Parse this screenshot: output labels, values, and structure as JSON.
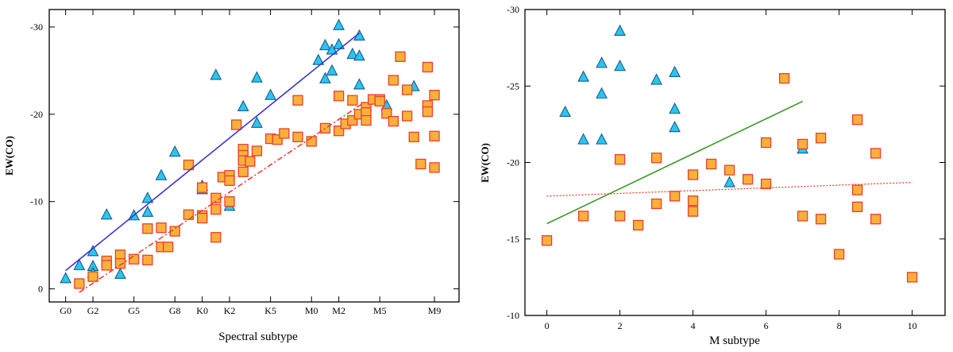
{
  "colors": {
    "square_fill": "#FBB03B",
    "square_stroke": "#E8412C",
    "triangle_fill": "#29C6F0",
    "triangle_stroke": "#1A5E8A",
    "fit_blue": "#3B33D6",
    "fit_red": "#E8412C",
    "fit_green": "#3A9B2A"
  },
  "chart_data": [
    {
      "type": "scatter",
      "xlabel": "Spectral subtype",
      "ylabel": "EW(CO)",
      "xlim": [
        -1.2,
        28.8
      ],
      "ylim": [
        1.5,
        -32
      ],
      "y_inverted": true,
      "xticks": [
        {
          "x": 0,
          "label": "G0"
        },
        {
          "x": 2,
          "label": "G2"
        },
        {
          "x": 5,
          "label": "G5"
        },
        {
          "x": 8,
          "label": "G8"
        },
        {
          "x": 10,
          "label": "K0"
        },
        {
          "x": 12,
          "label": "K2"
        },
        {
          "x": 15,
          "label": "K5"
        },
        {
          "x": 18,
          "label": "M0"
        },
        {
          "x": 20,
          "label": "M2"
        },
        {
          "x": 23,
          "label": "M5"
        },
        {
          "x": 27,
          "label": "M9"
        }
      ],
      "yticks": [
        0,
        -10,
        -20,
        -30
      ],
      "series": [
        {
          "marker": "triangle",
          "points": [
            [
              0.0,
              -1.2
            ],
            [
              1.0,
              -2.7
            ],
            [
              2.0,
              -4.3
            ],
            [
              2.0,
              -2.6
            ],
            [
              2.0,
              -1.8
            ],
            [
              3.0,
              -8.5
            ],
            [
              4.0,
              -1.7
            ],
            [
              5.0,
              -8.4
            ],
            [
              6.0,
              -10.4
            ],
            [
              6.0,
              -8.8
            ],
            [
              7.0,
              -13.0
            ],
            [
              8.0,
              -15.7
            ],
            [
              10.0,
              -11.8
            ],
            [
              10.0,
              -11.4
            ],
            [
              11.0,
              -24.5
            ],
            [
              12.0,
              -9.5
            ],
            [
              13.0,
              -20.9
            ],
            [
              14.0,
              -19.0
            ],
            [
              14.0,
              -24.2
            ],
            [
              15.0,
              -22.2
            ],
            [
              18.5,
              -26.2
            ],
            [
              19.0,
              -24.1
            ],
            [
              19.0,
              -27.9
            ],
            [
              19.5,
              -27.4
            ],
            [
              19.5,
              -25.0
            ],
            [
              20.0,
              -30.2
            ],
            [
              20.0,
              -28.0
            ],
            [
              21.0,
              -26.9
            ],
            [
              21.5,
              -29.0
            ],
            [
              21.5,
              -26.7
            ],
            [
              21.5,
              -23.4
            ],
            [
              23.5,
              -21.0
            ],
            [
              25.5,
              -23.2
            ]
          ]
        },
        {
          "marker": "square",
          "points": [
            [
              1.0,
              -0.6
            ],
            [
              2.0,
              -1.4
            ],
            [
              3.0,
              -3.2
            ],
            [
              3.0,
              -2.7
            ],
            [
              4.0,
              -3.9
            ],
            [
              4.0,
              -2.9
            ],
            [
              5.0,
              -3.4
            ],
            [
              6.0,
              -3.3
            ],
            [
              6.0,
              -6.9
            ],
            [
              7.0,
              -7.0
            ],
            [
              7.0,
              -4.8
            ],
            [
              7.5,
              -4.8
            ],
            [
              8.0,
              -6.6
            ],
            [
              9.0,
              -8.5
            ],
            [
              9.0,
              -14.2
            ],
            [
              10.0,
              -11.6
            ],
            [
              10.0,
              -8.4
            ],
            [
              10.0,
              -8.1
            ],
            [
              11.0,
              -10.4
            ],
            [
              11.0,
              -9.1
            ],
            [
              11.0,
              -5.9
            ],
            [
              11.5,
              -12.8
            ],
            [
              12.0,
              -13.0
            ],
            [
              12.0,
              -12.4
            ],
            [
              12.0,
              -10.0
            ],
            [
              12.5,
              -18.8
            ],
            [
              13.0,
              -16.0
            ],
            [
              13.0,
              -15.3
            ],
            [
              13.0,
              -14.7
            ],
            [
              13.0,
              -13.4
            ],
            [
              13.5,
              -14.6
            ],
            [
              14.0,
              -15.8
            ],
            [
              15.0,
              -17.2
            ],
            [
              15.5,
              -17.1
            ],
            [
              16.0,
              -17.8
            ],
            [
              17.0,
              -17.4
            ],
            [
              17.0,
              -21.6
            ],
            [
              18.0,
              -16.9
            ],
            [
              19.0,
              -18.4
            ],
            [
              20.0,
              -22.1
            ],
            [
              20.0,
              -18.1
            ],
            [
              20.5,
              -18.9
            ],
            [
              21.0,
              -19.3
            ],
            [
              21.0,
              -21.6
            ],
            [
              21.5,
              -20.0
            ],
            [
              22.0,
              -20.8
            ],
            [
              22.0,
              -20.2
            ],
            [
              22.0,
              -19.3
            ],
            [
              22.5,
              -21.7
            ],
            [
              23.0,
              -21.7
            ],
            [
              23.0,
              -21.5
            ],
            [
              23.5,
              -20.1
            ],
            [
              24.0,
              -23.9
            ],
            [
              24.0,
              -19.2
            ],
            [
              24.5,
              -26.6
            ],
            [
              25.0,
              -19.8
            ],
            [
              25.0,
              -22.8
            ],
            [
              25.5,
              -17.4
            ],
            [
              26.0,
              -14.3
            ],
            [
              26.5,
              -25.4
            ],
            [
              26.5,
              -21.0
            ],
            [
              26.5,
              -20.3
            ],
            [
              27.0,
              -22.2
            ],
            [
              27.0,
              -17.5
            ],
            [
              27.0,
              -13.9
            ]
          ]
        }
      ],
      "fits": [
        {
          "style": "solid",
          "color_key": "fit_blue",
          "x": [
            0,
            21.5
          ],
          "y": [
            -2.1,
            -29.3
          ]
        },
        {
          "style": "dashdot",
          "color_key": "fit_red",
          "x": [
            1,
            22
          ],
          "y": [
            0.4,
            -21.5
          ]
        }
      ]
    },
    {
      "type": "scatter",
      "xlabel": "M subtype",
      "ylabel": "EW(CO)",
      "xlim": [
        -0.6,
        10.9
      ],
      "ylim": [
        -10,
        -30
      ],
      "y_inverted": true,
      "xticks": [
        0,
        2,
        4,
        6,
        8,
        10
      ],
      "yticks": [
        -10,
        -15,
        -20,
        -25,
        -30
      ],
      "series": [
        {
          "marker": "triangle",
          "points": [
            [
              0.5,
              -23.3
            ],
            [
              1.0,
              -25.6
            ],
            [
              1.0,
              -21.5
            ],
            [
              1.5,
              -26.5
            ],
            [
              1.5,
              -24.5
            ],
            [
              1.5,
              -21.5
            ],
            [
              2.0,
              -28.6
            ],
            [
              2.0,
              -26.3
            ],
            [
              3.0,
              -25.4
            ],
            [
              3.5,
              -25.9
            ],
            [
              3.5,
              -23.5
            ],
            [
              3.5,
              -22.3
            ],
            [
              5.0,
              -18.7
            ],
            [
              7.0,
              -20.9
            ]
          ]
        },
        {
          "marker": "square",
          "points": [
            [
              0.0,
              -14.9
            ],
            [
              1.0,
              -16.5
            ],
            [
              2.0,
              -20.2
            ],
            [
              2.0,
              -16.5
            ],
            [
              2.5,
              -15.9
            ],
            [
              3.0,
              -20.3
            ],
            [
              3.0,
              -17.3
            ],
            [
              3.5,
              -17.8
            ],
            [
              4.0,
              -19.2
            ],
            [
              4.0,
              -17.5
            ],
            [
              4.0,
              -16.8
            ],
            [
              4.5,
              -19.9
            ],
            [
              5.0,
              -19.5
            ],
            [
              5.5,
              -18.9
            ],
            [
              6.0,
              -21.3
            ],
            [
              6.0,
              -18.6
            ],
            [
              6.5,
              -25.5
            ],
            [
              7.0,
              -21.2
            ],
            [
              7.0,
              -16.5
            ],
            [
              7.5,
              -21.6
            ],
            [
              7.5,
              -16.3
            ],
            [
              8.0,
              -14.0
            ],
            [
              8.5,
              -22.8
            ],
            [
              8.5,
              -18.2
            ],
            [
              8.5,
              -17.1
            ],
            [
              9.0,
              -20.6
            ],
            [
              9.0,
              -16.3
            ],
            [
              10.0,
              -12.5
            ]
          ]
        }
      ],
      "fits": [
        {
          "style": "solid",
          "color_key": "fit_green",
          "x": [
            0,
            7
          ],
          "y": [
            -16.0,
            -24.0
          ]
        },
        {
          "style": "dotted",
          "color_key": "fit_red",
          "x": [
            0,
            10
          ],
          "y": [
            -17.8,
            -18.7
          ]
        }
      ]
    }
  ]
}
